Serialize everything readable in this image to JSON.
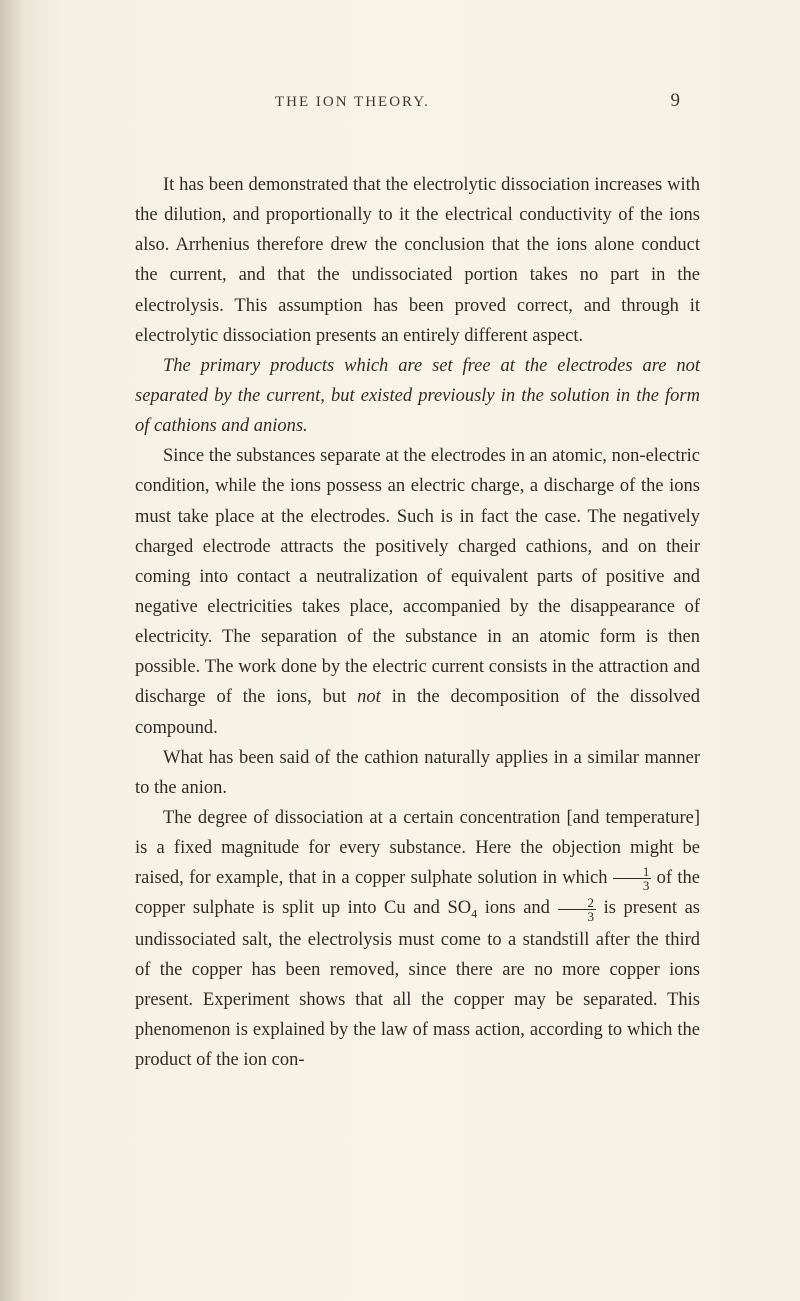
{
  "header": {
    "title": "THE ION THEORY.",
    "pageNumber": "9"
  },
  "paragraphs": {
    "p1": "It has been demonstrated that the electrolytic dissociation increases with the dilution, and proportionally to it the electrical conductivity of the ions also. Arrhenius therefore drew the conclusion that the ions alone conduct the current, and that the undissociated portion takes no part in the electrolysis. This assumption has been proved correct, and through it electrolytic dissociation presents an entirely different aspect.",
    "p2_italic": "The primary products which are set free at the electrodes are not separated by the current, but existed previously in the solution in the form of cathions and anions.",
    "p3": "Since the substances separate at the electrodes in an atomic, non-electric condition, while the ions possess an electric charge, a discharge of the ions must take place at the electrodes. Such is in fact the case. The negatively charged electrode attracts the positively charged cathions, and on their coming into contact a neutralization of equivalent parts of positive and negative electricities takes place, accompanied by the disappearance of electricity. The separation of the substance in an atomic form is then possible. The work done by the electric current consists in the attraction and discharge of the ions, but ",
    "p3_italic": "not",
    "p3_cont": " in the decomposition of the dissolved compound.",
    "p4": "What has been said of the cathion naturally applies in a similar manner to the anion.",
    "p5a": "The degree of dissociation at a certain concentration [and temperature] is a fixed magnitude for every substance. Here the objection might be raised, for example, that in a copper sulphate solution in which ",
    "p5b": " of the copper sulphate is split up into Cu and SO",
    "p5_sub": "4",
    "p5c": " ions and ",
    "p5d": " is present as undissociated salt, the electrolysis must come to a standstill after the third of the copper has been removed, since there are no more copper ions present. Experiment shows that all the copper may be separated. This phenomenon is explained by the law of mass action, according to which the product of the ion con-"
  },
  "fractions": {
    "f1_num": "1",
    "f1_den": "3",
    "f2_num": "2",
    "f2_den": "3"
  },
  "colors": {
    "background": "#f5f0e4",
    "text": "#2e2c26",
    "header_text": "#3a3832"
  },
  "typography": {
    "body_fontsize": 18.5,
    "header_fontsize": 15,
    "pagenum_fontsize": 19,
    "line_height": 1.63
  }
}
